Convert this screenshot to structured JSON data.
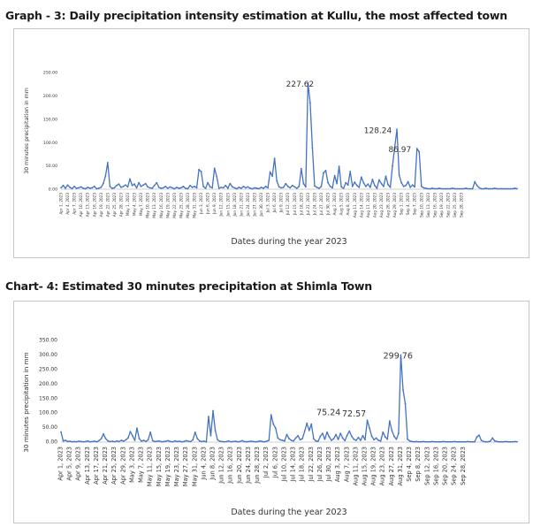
{
  "chart_data": [
    {
      "type": "line",
      "title": "Graph - 3: Daily precipitation intensity estimation at Kullu, the most affected town",
      "xlabel": "Dates during the year 2023",
      "ylabel": "30 minutes precipitation in mm",
      "ylim": [
        0,
        250
      ],
      "yticks": [
        "0.00",
        "50.00",
        "100.00",
        "150.00",
        "200.00",
        "250.00"
      ],
      "yticks_values": [
        0,
        50,
        100,
        150,
        200,
        250
      ],
      "xtick_labels": [
        "Apr 1, 2023",
        "Apr 4, 2023",
        "Apr 7, 2023",
        "Apr 10, 2023",
        "Apr 13, 2023",
        "Apr 16, 2023",
        "Apr 19, 2023",
        "Apr 22, 2023",
        "Apr 25, 2023",
        "Apr 28, 2023",
        "May 1, 2023",
        "May 4, 2023",
        "May 7, 2023",
        "May 10, 2023",
        "May 13, 2023",
        "May 16, 2023",
        "May 19, 2023",
        "May 22, 2023",
        "May 25, 2023",
        "May 28, 2023",
        "May 31, 2023",
        "Jun 3, 2023",
        "Jun 6, 2023",
        "Jun 9, 2023",
        "Jun 12, 2023",
        "Jun 15, 2023",
        "Jun 18, 2023",
        "Jun 21, 2023",
        "Jun 24, 2023",
        "Jun 27, 2023",
        "Jun 30, 2023",
        "Jul 3, 2023",
        "Jul 6, 2023",
        "Jul 9, 2023",
        "Jul 12, 2023",
        "Jul 15, 2023",
        "Jul 18, 2023",
        "Jul 21, 2023",
        "Jul 24, 2023",
        "Jul 27, 2023",
        "Jul 30, 2023",
        "Aug 2, 2023",
        "Aug 5, 2023",
        "Aug 8, 2023",
        "Aug 11, 2023",
        "Aug 14, 2023",
        "Aug 17, 2023",
        "Aug 20, 2023",
        "Aug 23, 2023",
        "Aug 26, 2023",
        "Aug 29, 2023",
        "Sep 1, 2023",
        "Sep 4, 2023",
        "Sep 7, 2023",
        "Sep 10, 2023",
        "Sep 13, 2023",
        "Sep 16, 2023",
        "Sep 19, 2023",
        "Sep 22, 2023",
        "Sep 25, 2023",
        "Sep 28, 2023"
      ],
      "annotations": [
        {
          "x": "Jul 8, 2023",
          "y": 227.62,
          "text": "227.62"
        },
        {
          "x": "Aug 12, 2023",
          "y": 128.24,
          "text": "128.24"
        },
        {
          "x": "Aug 23, 2023",
          "y": 86.97,
          "text": "86.97"
        }
      ],
      "series": [
        {
          "color": "#4472c4",
          "x_start": "Apr 1, 2023",
          "x_end": "Sep 30, 2023",
          "values": [
            3,
            8,
            2,
            9,
            4,
            1,
            6,
            2,
            3,
            5,
            2,
            1,
            4,
            2,
            3,
            6,
            1,
            2,
            4,
            12,
            28,
            57,
            6,
            2,
            3,
            8,
            11,
            4,
            6,
            9,
            5,
            22,
            8,
            11,
            3,
            14,
            6,
            9,
            12,
            5,
            3,
            2,
            8,
            14,
            4,
            2,
            3,
            6,
            2,
            5,
            3,
            1,
            4,
            2,
            3,
            6,
            2,
            1,
            8,
            4,
            6,
            3,
            42,
            38,
            6,
            2,
            14,
            5,
            3,
            45,
            27,
            2,
            4,
            3,
            8,
            2,
            12,
            5,
            3,
            1,
            4,
            2,
            6,
            3,
            5,
            2,
            1,
            3,
            2,
            1,
            4,
            2,
            6,
            3,
            37,
            28,
            66,
            18,
            5,
            3,
            4,
            12,
            6,
            3,
            8,
            5,
            2,
            6,
            44,
            12,
            5,
            227.62,
            185,
            88,
            7,
            4,
            2,
            6,
            35,
            40,
            14,
            6,
            3,
            29,
            12,
            49,
            5,
            2,
            14,
            9,
            38,
            6,
            15,
            8,
            4,
            26,
            14,
            6,
            11,
            4,
            21,
            8,
            2,
            20,
            12,
            6,
            28,
            10,
            4,
            50,
            90,
            128.24,
            30,
            14,
            6,
            8,
            16,
            4,
            9,
            5,
            86.97,
            80,
            6,
            3,
            2,
            1,
            1,
            2,
            1,
            1,
            2,
            1,
            1,
            1,
            1,
            1,
            2,
            1,
            1,
            1,
            1,
            1,
            2,
            1,
            1,
            1,
            16,
            8,
            3,
            1,
            1,
            2,
            1,
            1,
            1,
            2,
            1,
            1,
            1,
            1,
            1,
            1,
            1,
            1,
            2,
            1
          ]
        }
      ]
    },
    {
      "type": "line",
      "title": "Chart- 4: Estimated 30 minutes precipitation at Shimla Town",
      "xlabel": "Dates during the year 2023",
      "ylabel": "30 minutes precipitation in mm",
      "ylim": [
        0,
        350
      ],
      "yticks": [
        "0.00",
        "50.00",
        "100.00",
        "150.00",
        "200.00",
        "250.00",
        "300.00",
        "350.00"
      ],
      "yticks_values": [
        0,
        50,
        100,
        150,
        200,
        250,
        300,
        350
      ],
      "xtick_labels": [
        "Apr 1, 2023",
        "Apr 5, 2023",
        "Apr 9, 2023",
        "Apr 13, 2023",
        "Apr 17, 2023",
        "Apr 21, 2023",
        "Apr 25, 2023",
        "Apr 29, 2023",
        "May 3, 2023",
        "May 7, 2023",
        "May 11, 2023",
        "May 15, 2023",
        "May 19, 2023",
        "May 23, 2023",
        "May 27, 2023",
        "May 31, 2023",
        "Jun 4, 2023",
        "Jun 8, 2023",
        "Jun 12, 2023",
        "Jun 16, 2023",
        "Jun 20, 2023",
        "Jun 24, 2023",
        "Jun 28, 2023",
        "Jul 2, 2023",
        "Jul 6, 2023",
        "Jul 10, 2023",
        "Jul 14, 2023",
        "Jul 18, 2023",
        "Jul 22, 2023",
        "Jul 26, 2023",
        "Jul 30, 2023",
        "Aug 3, 2023",
        "Aug 7, 2023",
        "Aug 11, 2023",
        "Aug 15, 2023",
        "Aug 19, 2023",
        "Aug 23, 2023",
        "Aug 27, 2023",
        "Aug 31, 2023",
        "Sep 4, 2023",
        "Sep 8, 2023",
        "Sep 12, 2023",
        "Sep 16, 2023",
        "Sep 20, 2023",
        "Sep 24, 2023",
        "Sep 28, 2023"
      ],
      "annotations": [
        {
          "x": "Aug 2, 2023",
          "y": 75.24,
          "text": "75.24"
        },
        {
          "x": "Aug 15, 2023",
          "y": 72.57,
          "text": "72.57"
        },
        {
          "x": "Aug 20, 2023",
          "y": 299.76,
          "text": "299.76"
        }
      ],
      "series": [
        {
          "color": "#4472c4",
          "x_start": "Apr 1, 2023",
          "x_end": "Sep 30, 2023",
          "values": [
            35,
            4,
            6,
            2,
            3,
            1,
            2,
            1,
            3,
            2,
            1,
            2,
            4,
            1,
            2,
            3,
            1,
            5,
            12,
            28,
            12,
            4,
            2,
            3,
            1,
            4,
            2,
            6,
            3,
            8,
            14,
            36,
            22,
            6,
            48,
            12,
            3,
            6,
            2,
            8,
            34,
            5,
            2,
            3,
            4,
            1,
            2,
            3,
            5,
            2,
            1,
            4,
            2,
            3,
            1,
            2,
            5,
            3,
            2,
            8,
            34,
            12,
            4,
            2,
            3,
            1,
            88,
            22,
            108,
            40,
            8,
            3,
            2,
            1,
            2,
            4,
            1,
            2,
            3,
            1,
            2,
            5,
            2,
            1,
            2,
            3,
            2,
            1,
            2,
            4,
            2,
            1,
            3,
            6,
            94,
            62,
            48,
            14,
            8,
            6,
            4,
            26,
            12,
            6,
            4,
            14,
            22,
            8,
            12,
            38,
            65,
            40,
            62,
            12,
            4,
            3,
            20,
            30,
            10,
            34,
            18,
            6,
            12,
            26,
            9,
            30,
            14,
            5,
            24,
            38,
            20,
            10,
            6,
            16,
            6,
            22,
            8,
            75.24,
            48,
            20,
            8,
            14,
            6,
            4,
            34,
            18,
            10,
            72.57,
            40,
            20,
            10,
            30,
            299.76,
            180,
            132,
            10,
            4,
            2,
            1,
            2,
            1,
            1,
            2,
            1,
            1,
            1,
            2,
            1,
            1,
            1,
            1,
            2,
            1,
            1,
            1,
            1,
            2,
            1,
            1,
            1,
            1,
            1,
            2,
            1,
            1,
            1,
            18,
            24,
            6,
            2,
            1,
            1,
            3,
            14,
            4,
            2,
            1,
            1,
            1,
            2,
            1,
            1,
            1,
            2,
            1
          ]
        }
      ]
    }
  ]
}
